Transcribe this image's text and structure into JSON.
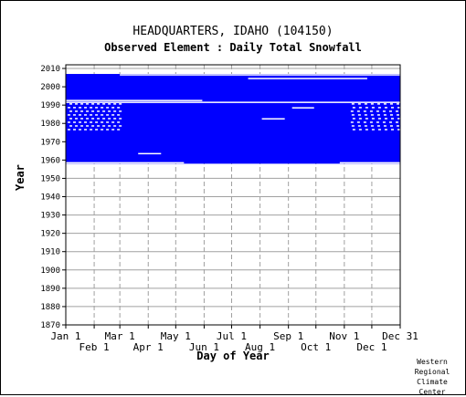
{
  "chart_data": {
    "type": "heatmap",
    "title": "HEADQUARTERS, IDAHO   (104150)",
    "subtitle": "Observed Element : Daily Total Snowfall",
    "xlabel": "Day of Year",
    "ylabel": "Year",
    "x_ticks_top_row": [
      "Jan 1",
      "Mar 1",
      "May 1",
      "Jul 1",
      "Sep 1",
      "Nov 1",
      "Dec 31"
    ],
    "x_ticks_bottom_row": [
      "Feb 1",
      "Apr 1",
      "Jun 1",
      "Aug 1",
      "Oct 1",
      "Dec 1"
    ],
    "y_ticks": [
      "1870",
      "1880",
      "1890",
      "1900",
      "1910",
      "1920",
      "1930",
      "1940",
      "1950",
      "1960",
      "1970",
      "1980",
      "1990",
      "2000",
      "2010"
    ],
    "ylim": [
      1870,
      2012
    ],
    "xlim": [
      1,
      366
    ],
    "grid": true,
    "fill_color": "#0000ff",
    "data_coverage": {
      "start_year": 1958,
      "end_year": 2006,
      "description_years": [
        1958,
        2006
      ],
      "missing_periods": [
        {
          "year": 1991,
          "start_day": 1,
          "end_day": 366
        },
        {
          "year": 1992,
          "start_day": 1,
          "end_day": 150
        },
        {
          "year": 2004,
          "start_day": 200,
          "end_day": 330
        },
        {
          "year": 2006,
          "start_day": 60,
          "end_day": 366
        },
        {
          "year": 1982,
          "start_day": 215,
          "end_day": 240
        },
        {
          "year": 1988,
          "start_day": 248,
          "end_day": 272
        },
        {
          "year": 1963,
          "start_day": 80,
          "end_day": 105
        },
        {
          "year": 1958,
          "start_day": 1,
          "end_day": 130
        },
        {
          "year": 1958,
          "start_day": 300,
          "end_day": 366
        }
      ]
    }
  },
  "credit": {
    "line1": "Western",
    "line2": "Regional",
    "line3": "Climate",
    "line4": "Center"
  }
}
